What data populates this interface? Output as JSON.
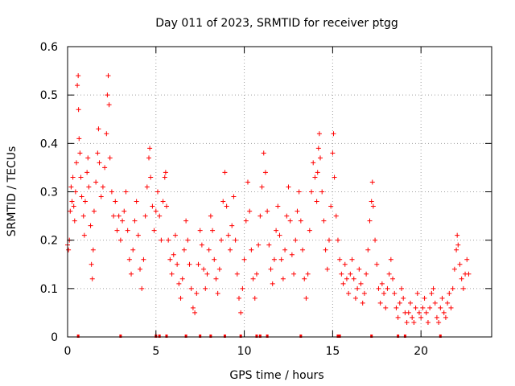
{
  "chart_data": {
    "type": "scatter",
    "title": "Day 011 of 2023, SRMTID for receiver ptgg",
    "xlabel": "GPS time / hours",
    "ylabel": "SRMTID / TECUs",
    "xlim": [
      0,
      24
    ],
    "ylim": [
      0,
      0.6
    ],
    "xticks": [
      0,
      5,
      10,
      15,
      20
    ],
    "yticks": [
      0,
      0.1,
      0.2,
      0.3,
      0.4,
      0.5,
      0.6
    ],
    "ytick_labels": [
      "0",
      "0.1",
      "0.2",
      "0.3",
      "0.4",
      "0.5",
      "0.6"
    ],
    "grid": true,
    "marker": "+",
    "color": "#ff0000",
    "series": [
      {
        "name": "SRMTID",
        "points": [
          [
            0.0,
            0.19
          ],
          [
            0.05,
            0.18
          ],
          [
            0.1,
            0.2
          ],
          [
            0.15,
            0.26
          ],
          [
            0.2,
            0.31
          ],
          [
            0.25,
            0.28
          ],
          [
            0.3,
            0.33
          ],
          [
            0.35,
            0.27
          ],
          [
            0.4,
            0.24
          ],
          [
            0.45,
            0.3
          ],
          [
            0.5,
            0.36
          ],
          [
            0.55,
            0.52
          ],
          [
            0.6,
            0.54
          ],
          [
            0.62,
            0.47
          ],
          [
            0.65,
            0.41
          ],
          [
            0.7,
            0.38
          ],
          [
            0.75,
            0.33
          ],
          [
            0.8,
            0.29
          ],
          [
            0.9,
            0.25
          ],
          [
            0.95,
            0.21
          ],
          [
            1.0,
            0.28
          ],
          [
            1.1,
            0.34
          ],
          [
            1.15,
            0.37
          ],
          [
            1.2,
            0.31
          ],
          [
            1.3,
            0.23
          ],
          [
            1.35,
            0.15
          ],
          [
            1.4,
            0.12
          ],
          [
            1.45,
            0.18
          ],
          [
            1.5,
            0.26
          ],
          [
            1.6,
            0.32
          ],
          [
            1.7,
            0.38
          ],
          [
            1.75,
            0.43
          ],
          [
            1.8,
            0.36
          ],
          [
            1.9,
            0.29
          ],
          [
            2.0,
            0.31
          ],
          [
            2.1,
            0.35
          ],
          [
            2.2,
            0.42
          ],
          [
            2.25,
            0.5
          ],
          [
            2.3,
            0.54
          ],
          [
            2.35,
            0.48
          ],
          [
            2.4,
            0.37
          ],
          [
            2.5,
            0.3
          ],
          [
            2.6,
            0.25
          ],
          [
            2.7,
            0.28
          ],
          [
            2.8,
            0.22
          ],
          [
            2.9,
            0.25
          ],
          [
            3.0,
            0.2
          ],
          [
            3.1,
            0.24
          ],
          [
            3.2,
            0.26
          ],
          [
            3.3,
            0.3
          ],
          [
            3.4,
            0.22
          ],
          [
            3.5,
            0.16
          ],
          [
            3.6,
            0.13
          ],
          [
            3.7,
            0.18
          ],
          [
            3.8,
            0.24
          ],
          [
            3.9,
            0.28
          ],
          [
            4.0,
            0.21
          ],
          [
            4.1,
            0.14
          ],
          [
            4.2,
            0.1
          ],
          [
            4.3,
            0.16
          ],
          [
            4.4,
            0.25
          ],
          [
            4.5,
            0.31
          ],
          [
            4.6,
            0.37
          ],
          [
            4.65,
            0.39
          ],
          [
            4.7,
            0.33
          ],
          [
            4.8,
            0.27
          ],
          [
            4.9,
            0.22
          ],
          [
            5.0,
            0.26
          ],
          [
            5.1,
            0.3
          ],
          [
            5.2,
            0.25
          ],
          [
            5.3,
            0.2
          ],
          [
            5.4,
            0.28
          ],
          [
            5.5,
            0.33
          ],
          [
            5.55,
            0.34
          ],
          [
            5.6,
            0.27
          ],
          [
            5.7,
            0.2
          ],
          [
            5.8,
            0.16
          ],
          [
            5.9,
            0.13
          ],
          [
            6.0,
            0.17
          ],
          [
            6.1,
            0.21
          ],
          [
            6.2,
            0.15
          ],
          [
            6.3,
            0.11
          ],
          [
            6.4,
            0.08
          ],
          [
            6.5,
            0.12
          ],
          [
            6.6,
            0.18
          ],
          [
            6.7,
            0.24
          ],
          [
            6.8,
            0.2
          ],
          [
            6.9,
            0.15
          ],
          [
            7.0,
            0.1
          ],
          [
            7.1,
            0.06
          ],
          [
            7.2,
            0.05
          ],
          [
            7.3,
            0.09
          ],
          [
            7.4,
            0.15
          ],
          [
            7.5,
            0.22
          ],
          [
            7.6,
            0.19
          ],
          [
            7.7,
            0.14
          ],
          [
            7.8,
            0.1
          ],
          [
            7.9,
            0.13
          ],
          [
            8.0,
            0.18
          ],
          [
            8.1,
            0.25
          ],
          [
            8.2,
            0.22
          ],
          [
            8.3,
            0.16
          ],
          [
            8.4,
            0.12
          ],
          [
            8.5,
            0.09
          ],
          [
            8.6,
            0.14
          ],
          [
            8.7,
            0.2
          ],
          [
            8.8,
            0.28
          ],
          [
            8.9,
            0.34
          ],
          [
            9.0,
            0.27
          ],
          [
            9.1,
            0.21
          ],
          [
            9.2,
            0.18
          ],
          [
            9.3,
            0.23
          ],
          [
            9.4,
            0.29
          ],
          [
            9.5,
            0.2
          ],
          [
            9.6,
            0.13
          ],
          [
            9.7,
            0.08
          ],
          [
            9.8,
            0.05
          ],
          [
            9.9,
            0.1
          ],
          [
            10.0,
            0.16
          ],
          [
            10.1,
            0.24
          ],
          [
            10.2,
            0.32
          ],
          [
            10.3,
            0.26
          ],
          [
            10.4,
            0.18
          ],
          [
            10.5,
            0.12
          ],
          [
            10.6,
            0.08
          ],
          [
            10.7,
            0.13
          ],
          [
            10.8,
            0.19
          ],
          [
            10.9,
            0.25
          ],
          [
            11.0,
            0.31
          ],
          [
            11.1,
            0.38
          ],
          [
            11.2,
            0.34
          ],
          [
            11.3,
            0.26
          ],
          [
            11.4,
            0.19
          ],
          [
            11.5,
            0.14
          ],
          [
            11.6,
            0.11
          ],
          [
            11.7,
            0.16
          ],
          [
            11.8,
            0.22
          ],
          [
            11.9,
            0.27
          ],
          [
            12.0,
            0.21
          ],
          [
            12.1,
            0.16
          ],
          [
            12.2,
            0.12
          ],
          [
            12.3,
            0.18
          ],
          [
            12.4,
            0.25
          ],
          [
            12.5,
            0.31
          ],
          [
            12.6,
            0.24
          ],
          [
            12.7,
            0.17
          ],
          [
            12.8,
            0.13
          ],
          [
            12.9,
            0.2
          ],
          [
            13.0,
            0.26
          ],
          [
            13.1,
            0.3
          ],
          [
            13.2,
            0.24
          ],
          [
            13.3,
            0.18
          ],
          [
            13.4,
            0.12
          ],
          [
            13.5,
            0.08
          ],
          [
            13.6,
            0.13
          ],
          [
            13.7,
            0.22
          ],
          [
            13.8,
            0.3
          ],
          [
            13.9,
            0.36
          ],
          [
            14.0,
            0.33
          ],
          [
            14.1,
            0.28
          ],
          [
            14.15,
            0.34
          ],
          [
            14.2,
            0.39
          ],
          [
            14.25,
            0.42
          ],
          [
            14.3,
            0.37
          ],
          [
            14.4,
            0.3
          ],
          [
            14.5,
            0.24
          ],
          [
            14.6,
            0.18
          ],
          [
            14.7,
            0.14
          ],
          [
            14.8,
            0.2
          ],
          [
            14.9,
            0.27
          ],
          [
            15.0,
            0.38
          ],
          [
            15.05,
            0.42
          ],
          [
            15.1,
            0.33
          ],
          [
            15.2,
            0.25
          ],
          [
            15.3,
            0.2
          ],
          [
            15.4,
            0.16
          ],
          [
            15.5,
            0.13
          ],
          [
            15.6,
            0.11
          ],
          [
            15.7,
            0.15
          ],
          [
            15.8,
            0.12
          ],
          [
            15.9,
            0.09
          ],
          [
            16.0,
            0.13
          ],
          [
            16.1,
            0.16
          ],
          [
            16.2,
            0.12
          ],
          [
            16.3,
            0.08
          ],
          [
            16.4,
            0.1
          ],
          [
            16.5,
            0.14
          ],
          [
            16.6,
            0.11
          ],
          [
            16.7,
            0.07
          ],
          [
            16.8,
            0.09
          ],
          [
            16.9,
            0.13
          ],
          [
            17.0,
            0.18
          ],
          [
            17.1,
            0.24
          ],
          [
            17.2,
            0.28
          ],
          [
            17.25,
            0.32
          ],
          [
            17.3,
            0.27
          ],
          [
            17.4,
            0.2
          ],
          [
            17.5,
            0.15
          ],
          [
            17.6,
            0.1
          ],
          [
            17.7,
            0.07
          ],
          [
            17.8,
            0.11
          ],
          [
            17.9,
            0.09
          ],
          [
            18.0,
            0.06
          ],
          [
            18.1,
            0.1
          ],
          [
            18.2,
            0.13
          ],
          [
            18.3,
            0.16
          ],
          [
            18.4,
            0.12
          ],
          [
            18.5,
            0.09
          ],
          [
            18.6,
            0.06
          ],
          [
            18.7,
            0.04
          ],
          [
            18.8,
            0.07
          ],
          [
            18.9,
            0.1
          ],
          [
            19.0,
            0.08
          ],
          [
            19.1,
            0.05
          ],
          [
            19.2,
            0.03
          ],
          [
            19.3,
            0.05
          ],
          [
            19.4,
            0.07
          ],
          [
            19.5,
            0.04
          ],
          [
            19.6,
            0.03
          ],
          [
            19.7,
            0.06
          ],
          [
            19.8,
            0.09
          ],
          [
            19.9,
            0.05
          ],
          [
            20.0,
            0.04
          ],
          [
            20.1,
            0.06
          ],
          [
            20.2,
            0.08
          ],
          [
            20.3,
            0.05
          ],
          [
            20.4,
            0.03
          ],
          [
            20.5,
            0.06
          ],
          [
            20.6,
            0.09
          ],
          [
            20.7,
            0.1
          ],
          [
            20.8,
            0.07
          ],
          [
            20.9,
            0.04
          ],
          [
            21.0,
            0.03
          ],
          [
            21.1,
            0.06
          ],
          [
            21.2,
            0.08
          ],
          [
            21.3,
            0.05
          ],
          [
            21.4,
            0.04
          ],
          [
            21.5,
            0.07
          ],
          [
            21.6,
            0.09
          ],
          [
            21.7,
            0.06
          ],
          [
            21.8,
            0.1
          ],
          [
            21.9,
            0.14
          ],
          [
            22.0,
            0.18
          ],
          [
            22.05,
            0.21
          ],
          [
            22.1,
            0.19
          ],
          [
            22.2,
            0.15
          ],
          [
            22.3,
            0.12
          ],
          [
            22.4,
            0.1
          ],
          [
            22.5,
            0.13
          ],
          [
            22.6,
            0.16
          ],
          [
            22.7,
            0.13
          ]
        ]
      }
    ],
    "bottom_markers_x": [
      0.6,
      3.0,
      5.0,
      5.2,
      5.6,
      6.7,
      7.5,
      8.1,
      8.9,
      9.8,
      10.7,
      10.9,
      11.3,
      13.2,
      15.3,
      15.4,
      17.2,
      18.7,
      19.1,
      21.1
    ]
  }
}
